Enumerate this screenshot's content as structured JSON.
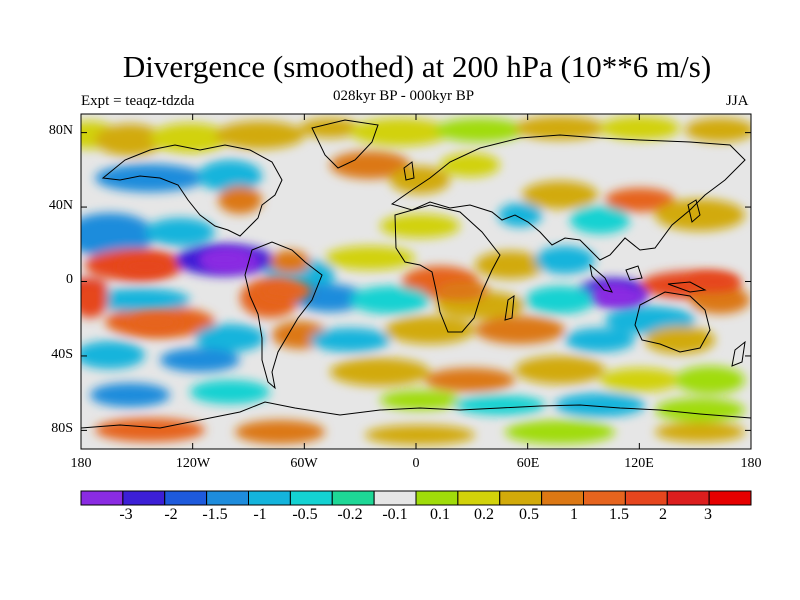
{
  "title": "Divergence (smoothed) at 200 hPa (10**6 m/s)",
  "subtitle": "028kyr BP - 000kyr BP",
  "left_label": "Expt = teaqz-tdzda",
  "right_label": "JJA",
  "map": {
    "projection": "cylindrical equidistant",
    "lon_range": [
      -180,
      180
    ],
    "lat_range": [
      -90,
      90
    ],
    "lat_ticks": [
      {
        "value": 80,
        "label": "80N"
      },
      {
        "value": 40,
        "label": "40N"
      },
      {
        "value": 0,
        "label": "0"
      },
      {
        "value": -40,
        "label": "40S"
      },
      {
        "value": -80,
        "label": "80S"
      }
    ],
    "lon_ticks": [
      {
        "value": -180,
        "label": "180"
      },
      {
        "value": -120,
        "label": "120W"
      },
      {
        "value": -60,
        "label": "60W"
      },
      {
        "value": 0,
        "label": "0"
      },
      {
        "value": 60,
        "label": "60E"
      },
      {
        "value": 120,
        "label": "120E"
      },
      {
        "value": 180,
        "label": "180"
      }
    ],
    "features": [
      {
        "name": "strong-convergence-central-america",
        "lon": -103,
        "lat": 12,
        "level": "-3"
      },
      {
        "name": "strong-convergence-indonesia",
        "lon": 110,
        "lat": -8,
        "level": "-3"
      },
      {
        "name": "strong-divergence-west-pacific",
        "lon": 160,
        "lat": 0,
        "level": "2"
      },
      {
        "name": "strong-divergence-east-pacific",
        "lon": -145,
        "lat": 8,
        "level": "2"
      },
      {
        "name": "divergence-south-pacific",
        "lon": -140,
        "lat": -22,
        "level": "1.5"
      },
      {
        "name": "divergence-south-america",
        "lon": -70,
        "lat": -5,
        "level": "1.5"
      },
      {
        "name": "divergence-africa",
        "lon": 25,
        "lat": -5,
        "level": "1"
      }
    ]
  },
  "colorbar": {
    "colors": [
      "#8a2be2",
      "#3c1fd6",
      "#1e5adc",
      "#1e8cdc",
      "#14b4dc",
      "#14d2d2",
      "#1ed796",
      "#e6e6e6",
      "#a0dc0a",
      "#d2d20a",
      "#d2aa0a",
      "#dc7814",
      "#e6641e",
      "#e6461e",
      "#dc1e1e",
      "#e60000"
    ],
    "labels": [
      "-3",
      "-2",
      "-1.5",
      "-1",
      "-0.5",
      "-0.2",
      "-0.1",
      "0.1",
      "0.2",
      "0.5",
      "1",
      "1.5",
      "2",
      "3"
    ]
  }
}
